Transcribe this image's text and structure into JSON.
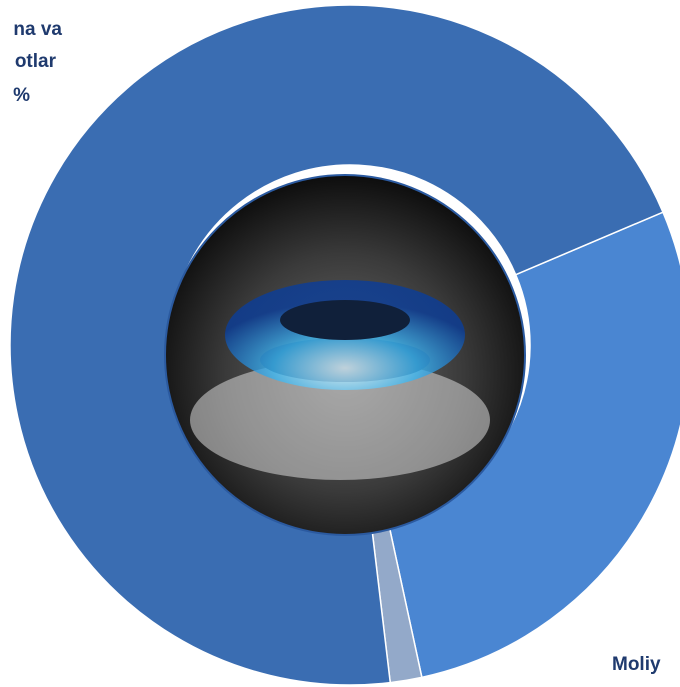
{
  "chart_data": {
    "type": "donut",
    "categories": [
      "Moliy",
      null,
      [
        "na va",
        "otlar"
      ]
    ],
    "values": [
      28,
      1.5,
      70.5
    ],
    "value_labels": [
      null,
      null,
      "%"
    ],
    "colors": [
      "#4a86d2",
      "#93a9c9",
      "#3a6db2"
    ],
    "start_angle": 67
  }
}
